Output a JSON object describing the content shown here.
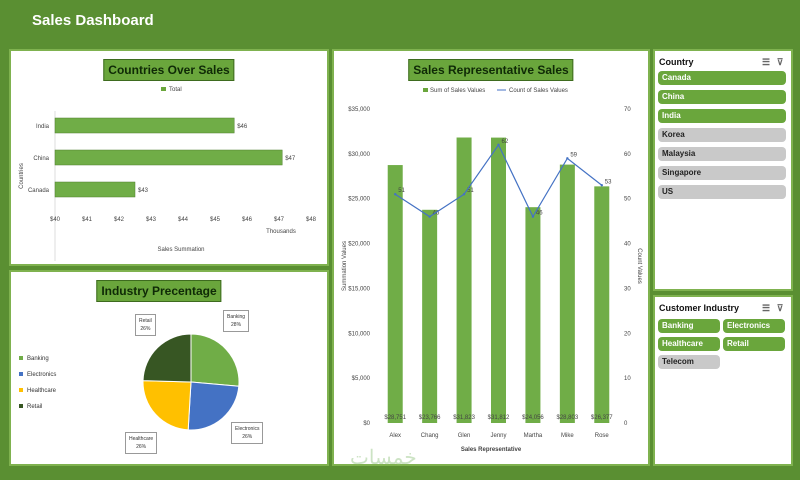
{
  "dashboard": {
    "title": "Sales Dashboard"
  },
  "colors": {
    "accent": "#6aa63c",
    "background": "#5a8f32",
    "line": "#4472c4",
    "slicer_off": "#c9c9c9"
  },
  "countries_chart": {
    "title": "Countries Over Sales",
    "legend": "Total",
    "ylabel": "Countries",
    "xlabel": "Sales Summation",
    "unit": "Thousands",
    "xticks": [
      "$40",
      "$41",
      "$42",
      "$43",
      "$44",
      "$45",
      "$46",
      "$47",
      "$48"
    ]
  },
  "industry_chart": {
    "title": "Industry Precentage",
    "legend": [
      "Banking",
      "Electronics",
      "Healthcare",
      "Retail"
    ],
    "labels": [
      {
        "name": "Banking",
        "pct": "28%"
      },
      {
        "name": "Electronics",
        "pct": "26%"
      },
      {
        "name": "Healthcare",
        "pct": "26%"
      },
      {
        "name": "Retail",
        "pct": "26%"
      }
    ]
  },
  "rep_chart": {
    "title": "Sales Representative Sales",
    "legend_bar": "Sum of Sales Values",
    "legend_line": "Count of Sales Values",
    "ylabel": "Summation Values",
    "y2label": "Count Values",
    "xlabel": "Sales Representative",
    "yticks": [
      "$0",
      "$5,000",
      "$10,000",
      "$15,000",
      "$20,000",
      "$25,000",
      "$30,000",
      "$35,000"
    ],
    "y2ticks": [
      "0",
      "10",
      "20",
      "30",
      "40",
      "50",
      "60",
      "70"
    ]
  },
  "chart_data": [
    {
      "type": "bar",
      "title": "Countries Over Sales",
      "categories": [
        "India",
        "China",
        "Canada"
      ],
      "values": [
        45.6,
        47.1,
        42.5
      ],
      "data_labels": [
        "$46",
        "$47",
        "$43"
      ],
      "xlabel": "Sales Summation",
      "ylabel": "Countries",
      "xlim": [
        40,
        48
      ],
      "legend": "top-center"
    },
    {
      "type": "pie",
      "title": "Industry Precentage",
      "categories": [
        "Banking",
        "Electronics",
        "Healthcare",
        "Retail"
      ],
      "values": [
        28,
        26,
        26,
        26
      ],
      "colors": [
        "#70ad47",
        "#4472c4",
        "#ffc000",
        "#375623"
      ]
    },
    {
      "type": "bar",
      "title": "Sales Representative Sales",
      "categories": [
        "Alex",
        "Chang",
        "Glen",
        "Jenny",
        "Martha",
        "Mike",
        "Rose"
      ],
      "series": [
        {
          "name": "Sum of Sales Values",
          "type": "bar",
          "values": [
            28751,
            23766,
            31823,
            31812,
            24056,
            28803,
            26377
          ],
          "data_labels": [
            "$28,751",
            "$23,766",
            "$31,823",
            "$31,812",
            "$24,056",
            "$28,803",
            "$26,377"
          ]
        },
        {
          "name": "Count of Sales Values",
          "type": "line",
          "axis": "secondary",
          "values": [
            51,
            46,
            51,
            62,
            46,
            59,
            53
          ],
          "data_labels": [
            "51",
            "46",
            "51",
            "62",
            "46",
            "59",
            "53"
          ]
        }
      ],
      "ylim": [
        0,
        35000
      ],
      "y2lim": [
        0,
        70
      ],
      "xlabel": "Sales Representative",
      "ylabel": "Summation Values",
      "y2label": "Count Values",
      "legend": "top-center"
    }
  ],
  "country_slicer": {
    "title": "Country",
    "items": [
      {
        "label": "Canada",
        "selected": true
      },
      {
        "label": "China",
        "selected": true
      },
      {
        "label": "India",
        "selected": true
      },
      {
        "label": "Korea",
        "selected": false
      },
      {
        "label": "Malaysia",
        "selected": false
      },
      {
        "label": "Singapore",
        "selected": false
      },
      {
        "label": "US",
        "selected": false
      }
    ]
  },
  "industry_slicer": {
    "title": "Customer Industry",
    "items": [
      {
        "label": "Banking",
        "selected": true
      },
      {
        "label": "Electronics",
        "selected": true
      },
      {
        "label": "Healthcare",
        "selected": true
      },
      {
        "label": "Retail",
        "selected": true
      },
      {
        "label": "Telecom",
        "selected": false
      }
    ]
  },
  "watermark": "خمسات"
}
